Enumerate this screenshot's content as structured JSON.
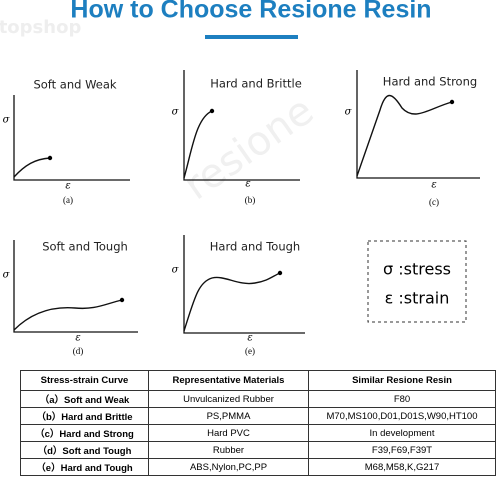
{
  "header": {
    "title": "How to Choose Resione Resin",
    "watermark": "topshop",
    "watermark2": "resione"
  },
  "panels": [
    {
      "title": "Soft and Weak",
      "y_label": "σ",
      "x_label": "ε",
      "letter": "(a)"
    },
    {
      "title": "Hard and Brittle",
      "y_label": "σ",
      "x_label": "ε",
      "letter": "(b)"
    },
    {
      "title": "Hard and Strong",
      "y_label": "σ",
      "x_label": "ε",
      "letter": "(c)"
    },
    {
      "title": "Soft and Tough",
      "y_label": "σ",
      "x_label": "ε",
      "letter": "(d)"
    },
    {
      "title": "Hard and Tough",
      "y_label": "σ",
      "x_label": "ε",
      "letter": "(e)"
    }
  ],
  "legend": {
    "stress": "σ :stress",
    "strain": "ε :strain"
  },
  "table": {
    "header": [
      "Stress-strain Curve",
      "Representative Materials",
      "Similar Resione Resin"
    ],
    "rows": [
      [
        "（a）Soft and Weak",
        "Unvulcanized Rubber",
        "F80"
      ],
      [
        "（b）Hard and Brittle",
        "PS,PMMA",
        "M70,MS100,D01,D01S,W90,HT100"
      ],
      [
        "（c）Hard and Strong",
        "Hard PVC",
        "In development"
      ],
      [
        "（d）Soft and Tough",
        "Rubber",
        "F39,F69,F39T"
      ],
      [
        "（e）Hard and Tough",
        "ABS,Nylon,PC,PP",
        "M68,M58,K,G217"
      ]
    ]
  }
}
